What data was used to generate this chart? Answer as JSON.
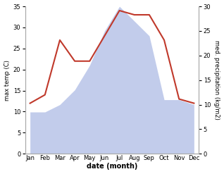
{
  "months": [
    "Jan",
    "Feb",
    "Mar",
    "Apr",
    "May",
    "Jun",
    "Jul",
    "Aug",
    "Sep",
    "Oct",
    "Nov",
    "Dec"
  ],
  "temperature": [
    12,
    14,
    27,
    22,
    22,
    28,
    34,
    33,
    33,
    27,
    13,
    12
  ],
  "precipitation": [
    8.5,
    8.5,
    10,
    13,
    18,
    25,
    30,
    27,
    24,
    11,
    11,
    10
  ],
  "temp_color": "#c0392b",
  "precip_color": "#b8c4e8",
  "temp_ylim": [
    0,
    35
  ],
  "precip_ylim": [
    0,
    30
  ],
  "temp_yticks": [
    0,
    5,
    10,
    15,
    20,
    25,
    30,
    35
  ],
  "precip_yticks": [
    0,
    5,
    10,
    15,
    20,
    25,
    30
  ],
  "xlabel": "date (month)",
  "ylabel_left": "max temp (C)",
  "ylabel_right": "med. precipitation (kg/m2)",
  "bg_color": "#ffffff",
  "fig_width": 3.18,
  "fig_height": 2.47,
  "dpi": 100
}
